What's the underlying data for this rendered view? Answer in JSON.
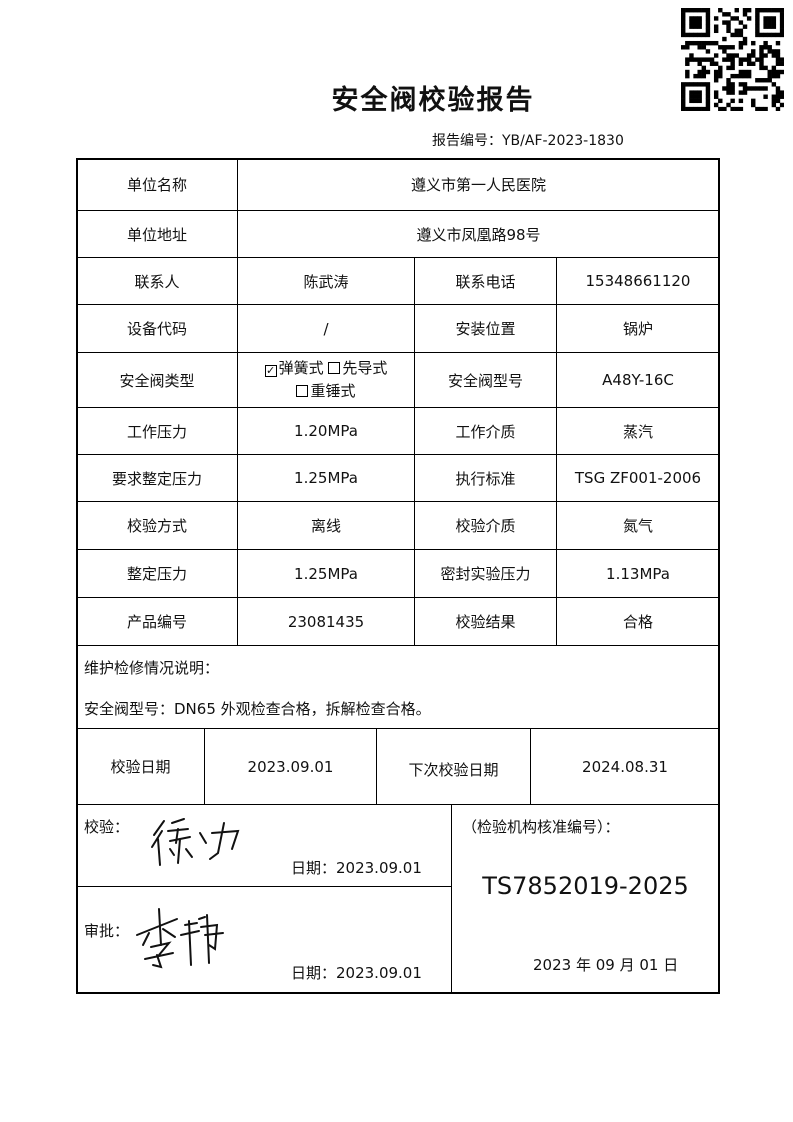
{
  "title": "安全阀校验报告",
  "report_no_label": "报告编号：",
  "report_no": "YB/AF-2023-1830",
  "rows": {
    "unit_name_label": "单位名称",
    "unit_name": "遵义市第一人民医院",
    "unit_addr_label": "单位地址",
    "unit_addr": "遵义市凤凰路98号",
    "contact_label": "联系人",
    "contact": "陈武涛",
    "phone_label": "联系电话",
    "phone": "15348661120",
    "equip_code_label": "设备代码",
    "equip_code": "/",
    "install_label": "安装位置",
    "install": "锅炉",
    "type_label": "安全阀类型",
    "type_options": [
      {
        "label": "弹簧式",
        "checked": true
      },
      {
        "label": "先导式",
        "checked": false
      },
      {
        "label": "重锤式",
        "checked": false
      }
    ],
    "model_label": "安全阀型号",
    "model": "A48Y-16C",
    "work_pressure_label": "工作压力",
    "work_pressure": "1.20MPa",
    "medium_label": "工作介质",
    "medium": "蒸汽",
    "req_set_pressure_label": "要求整定压力",
    "req_set_pressure": "1.25MPa",
    "standard_label": "执行标准",
    "standard": "TSG ZF001-2006",
    "method_label": "校验方式",
    "method": "离线",
    "test_medium_label": "校验介质",
    "test_medium": "氮气",
    "set_pressure_label": "整定压力",
    "set_pressure": "1.25MPa",
    "seal_pressure_label": "密封实验压力",
    "seal_pressure": "1.13MPa",
    "product_no_label": "产品编号",
    "product_no": "23081435",
    "result_label": "校验结果",
    "result": "合格"
  },
  "maintenance": {
    "label": "维护检修情况说明：",
    "text": "安全阀型号：DN65 外观检查合格，拆解检查合格。"
  },
  "dates": {
    "check_date_label": "校验日期",
    "check_date": "2023.09.01",
    "next_date_label": "下次校验日期",
    "next_date": "2024.08.31"
  },
  "sign": {
    "checker_label": "校验：",
    "checker_signature": "徐力",
    "checker_date": "日期：2023.09.01",
    "approver_label": "审批：",
    "approver_signature": "李伟",
    "approver_date": "日期：2023.09.01",
    "org_label": "（检验机构核准编号）：",
    "org_no": "TS7852019-2025",
    "org_date": "2023 年 09 月 01 日"
  },
  "qr_icon": "qr-code-icon"
}
